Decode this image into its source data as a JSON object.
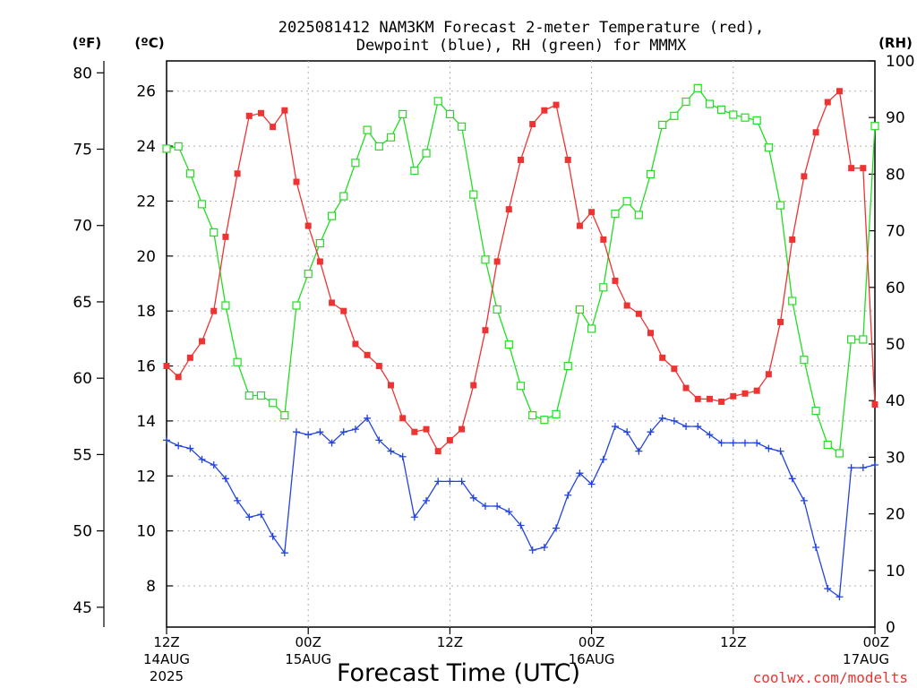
{
  "chart_data": {
    "type": "line",
    "title_line1": "2025081412 NAM3KM Forecast 2-meter Temperature (red),",
    "title_line2": "Dewpoint (blue), RH (green) for MMMX",
    "xlabel": "Forecast Time (UTC)",
    "watermark": "coolwx.com/modelts",
    "left_unit_outer": "(ºF)",
    "left_unit_inner": "(ºC)",
    "right_unit": "(RH)",
    "x_hours_range": [
      0,
      60
    ],
    "x_ticks": [
      {
        "hour": 0,
        "line1": "12Z",
        "line2": "14AUG",
        "line3": "2025"
      },
      {
        "hour": 12,
        "line1": "00Z",
        "line2": "15AUG",
        "line3": ""
      },
      {
        "hour": 24,
        "line1": "12Z",
        "line2": "",
        "line3": ""
      },
      {
        "hour": 36,
        "line1": "00Z",
        "line2": "16AUG",
        "line3": ""
      },
      {
        "hour": 48,
        "line1": "12Z",
        "line2": "",
        "line3": ""
      },
      {
        "hour": 60,
        "line1": "00Z",
        "line2": "17AUG",
        "line3": ""
      }
    ],
    "celsius_range": [
      6.5,
      27.1
    ],
    "celsius_ticks": [
      8,
      10,
      12,
      14,
      16,
      18,
      20,
      22,
      24,
      26
    ],
    "fahrenheit_ticks": [
      45,
      50,
      55,
      60,
      65,
      70,
      75,
      80
    ],
    "rh_range": [
      0,
      100
    ],
    "rh_ticks": [
      0,
      10,
      20,
      30,
      40,
      50,
      60,
      70,
      80,
      90,
      100
    ],
    "grid": true,
    "colors": {
      "temperature": "#ee3333",
      "dewpoint": "#2244dd",
      "rh": "#22dd22"
    },
    "temperature_c": [
      16.0,
      15.6,
      16.3,
      16.9,
      18.0,
      20.7,
      23.0,
      25.1,
      25.2,
      24.7,
      25.3,
      22.7,
      21.1,
      19.8,
      18.3,
      18.0,
      16.8,
      16.4,
      16.0,
      15.3,
      14.1,
      13.6,
      13.7,
      12.9,
      13.3,
      13.7,
      15.3,
      17.3,
      19.8,
      21.7,
      23.5,
      24.8,
      25.3,
      25.5,
      23.5,
      21.1,
      21.6,
      20.6,
      19.1,
      18.2,
      17.9,
      17.2,
      16.3,
      15.9,
      15.2,
      14.8,
      14.8,
      14.7,
      14.9,
      15.0,
      15.1,
      15.7,
      17.6,
      20.6,
      22.9,
      24.5,
      25.6,
      26.0,
      23.2,
      23.2,
      14.6
    ],
    "dewpoint_c": [
      13.3,
      13.1,
      13.0,
      12.6,
      12.4,
      11.9,
      11.1,
      10.5,
      10.6,
      9.8,
      9.2,
      13.6,
      13.5,
      13.6,
      13.2,
      13.6,
      13.7,
      14.1,
      13.3,
      12.9,
      12.7,
      10.5,
      11.1,
      11.8,
      11.8,
      11.8,
      11.2,
      10.9,
      10.9,
      10.7,
      10.2,
      9.3,
      9.4,
      10.1,
      11.3,
      12.1,
      11.7,
      12.6,
      13.8,
      13.6,
      12.9,
      13.6,
      14.1,
      14.0,
      13.8,
      13.8,
      13.5,
      13.2,
      13.2,
      13.2,
      13.2,
      13.0,
      12.9,
      11.9,
      11.1,
      9.4,
      7.9,
      7.6,
      12.3,
      12.3,
      12.4
    ],
    "rh_pct": [
      84.5,
      84.9,
      80.1,
      74.7,
      69.7,
      56.8,
      46.8,
      40.9,
      40.9,
      39.6,
      37.4,
      56.8,
      62.4,
      67.8,
      72.6,
      76.1,
      82.0,
      87.8,
      84.9,
      86.5,
      90.6,
      80.6,
      83.7,
      92.9,
      90.6,
      88.4,
      76.4,
      64.9,
      56.1,
      49.9,
      42.6,
      37.4,
      36.6,
      37.6,
      46.1,
      56.1,
      52.7,
      60.0,
      73.0,
      75.2,
      72.8,
      80.0,
      88.7,
      90.3,
      92.8,
      95.2,
      92.4,
      91.4,
      90.5,
      90.0,
      89.5,
      84.7,
      74.5,
      57.6,
      47.2,
      38.2,
      32.2,
      30.7,
      50.8,
      50.8,
      88.5
    ]
  }
}
